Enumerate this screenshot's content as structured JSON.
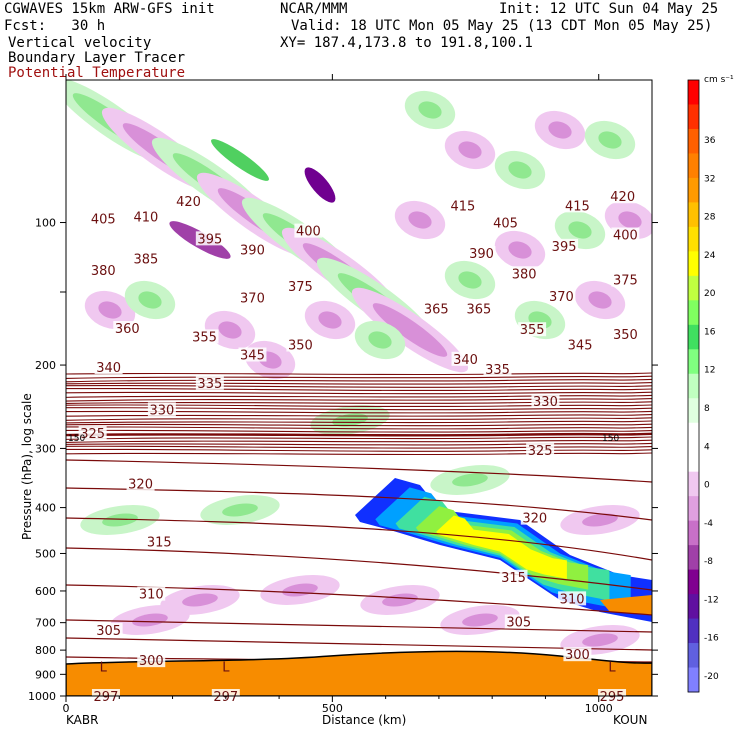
{
  "header": {
    "model": "CGWAVES 15km ARW-GFS init",
    "fcst": "Fcst:   30 h",
    "org": "NCAR/MMM",
    "init": "Init: 12 UTC Sun 04 May 25",
    "valid": "Valid: 18 UTC Mon 05 May 25 (13 CDT Mon 05 May 25)",
    "xy": "XY= 187.4,173.8 to 191.8,100.1",
    "field1": "Vertical velocity",
    "field2": "Boundary Layer Tracer",
    "field3": "Potential Temperature"
  },
  "colors": {
    "theta": "#7a0a0a",
    "terrain": "#f78c00",
    "pos_light": "#c8f5c8",
    "pos_mid": "#90e890",
    "pos_strong": "#50d060",
    "neg_light": "#f0c8f0",
    "neg_mid": "#d890d8",
    "neg_strong": "#a040a8",
    "neg_deep": "#700090"
  },
  "chart_data": {
    "type": "cross-section",
    "ylabel": "Pressure (hPa), log scale",
    "xlabel": "Distance (km)",
    "x_range": [
      0,
      1100
    ],
    "y_range_hPa": [
      1000,
      50
    ],
    "y_scale": "log",
    "y_ticks": [
      100,
      200,
      300,
      400,
      500,
      600,
      700,
      800,
      900,
      1000
    ],
    "x_ticks": [
      0,
      500,
      1000
    ],
    "left_station": "KABR",
    "right_station": "KOUN",
    "colorbar": {
      "units": "cm s⁻¹",
      "labels": [
        36,
        32,
        28,
        24,
        20,
        16,
        12,
        8,
        4,
        0,
        -4,
        -8,
        -12,
        -16,
        -20
      ],
      "colors": [
        "#ff0000",
        "#ff3000",
        "#ff6000",
        "#ff8000",
        "#ff9a00",
        "#ffc000",
        "#ffe000",
        "#ffff00",
        "#c0ff40",
        "#80ff60",
        "#40e060",
        "#80ff80",
        "#c0ffc0",
        "#e0ffe0",
        "#ffffff",
        "#ffffff",
        "#f0c8f0",
        "#e0a0e0",
        "#c870c8",
        "#a040a8",
        "#800090",
        "#6010a0",
        "#5030c0",
        "#6060e0",
        "#8080ff"
      ]
    },
    "theta_labels": [
      {
        "v": "420",
        "x": 230,
        "p": 90
      },
      {
        "v": "415",
        "x": 745,
        "p": 92
      },
      {
        "v": "415",
        "x": 960,
        "p": 92
      },
      {
        "v": "420",
        "x": 1045,
        "p": 88
      },
      {
        "v": "405",
        "x": 70,
        "p": 98
      },
      {
        "v": "410",
        "x": 150,
        "p": 97
      },
      {
        "v": "405",
        "x": 825,
        "p": 100
      },
      {
        "v": "395",
        "x": 270,
        "p": 108
      },
      {
        "v": "400",
        "x": 455,
        "p": 104
      },
      {
        "v": "395",
        "x": 935,
        "p": 112
      },
      {
        "v": "400",
        "x": 1050,
        "p": 106
      },
      {
        "v": "385",
        "x": 150,
        "p": 119
      },
      {
        "v": "390",
        "x": 350,
        "p": 114
      },
      {
        "v": "390",
        "x": 780,
        "p": 116
      },
      {
        "v": "380",
        "x": 70,
        "p": 126
      },
      {
        "v": "380",
        "x": 860,
        "p": 128
      },
      {
        "v": "375",
        "x": 440,
        "p": 136
      },
      {
        "v": "375",
        "x": 1050,
        "p": 132
      },
      {
        "v": "370",
        "x": 350,
        "p": 144
      },
      {
        "v": "370",
        "x": 930,
        "p": 143
      },
      {
        "v": "365",
        "x": 695,
        "p": 152
      },
      {
        "v": "365",
        "x": 775,
        "p": 152
      },
      {
        "v": "360",
        "x": 115,
        "p": 167
      },
      {
        "v": "355",
        "x": 260,
        "p": 174
      },
      {
        "v": "355",
        "x": 875,
        "p": 168
      },
      {
        "v": "350",
        "x": 440,
        "p": 181
      },
      {
        "v": "345",
        "x": 350,
        "p": 190
      },
      {
        "v": "345",
        "x": 965,
        "p": 181
      },
      {
        "v": "350",
        "x": 1050,
        "p": 172
      },
      {
        "v": "340",
        "x": 80,
        "p": 202
      },
      {
        "v": "340",
        "x": 750,
        "p": 194
      },
      {
        "v": "335",
        "x": 270,
        "p": 218
      },
      {
        "v": "335",
        "x": 810,
        "p": 204
      },
      {
        "v": "330",
        "x": 180,
        "p": 248
      },
      {
        "v": "330",
        "x": 900,
        "p": 238
      },
      {
        "v": "325",
        "x": 50,
        "p": 278
      },
      {
        "v": "325",
        "x": 890,
        "p": 302
      },
      {
        "v": "320",
        "x": 140,
        "p": 356
      },
      {
        "v": "320",
        "x": 880,
        "p": 420
      },
      {
        "v": "315",
        "x": 175,
        "p": 472
      },
      {
        "v": "315",
        "x": 840,
        "p": 560
      },
      {
        "v": "310",
        "x": 160,
        "p": 608
      },
      {
        "v": "310",
        "x": 950,
        "p": 622
      },
      {
        "v": "305",
        "x": 80,
        "p": 725
      },
      {
        "v": "305",
        "x": 850,
        "p": 696
      },
      {
        "v": "300",
        "x": 160,
        "p": 840
      },
      {
        "v": "300",
        "x": 960,
        "p": 816
      },
      {
        "v": "297",
        "x": 75,
        "p": 1000
      },
      {
        "v": "297",
        "x": 300,
        "p": 1000
      },
      {
        "v": "295",
        "x": 1025,
        "p": 1000
      }
    ],
    "low_labels": [
      {
        "v": "L",
        "x": 70,
        "p": 870
      },
      {
        "v": "L",
        "x": 300,
        "p": 870
      },
      {
        "v": "L",
        "x": 1025,
        "p": 870
      }
    ],
    "tropopause_label": "150"
  }
}
